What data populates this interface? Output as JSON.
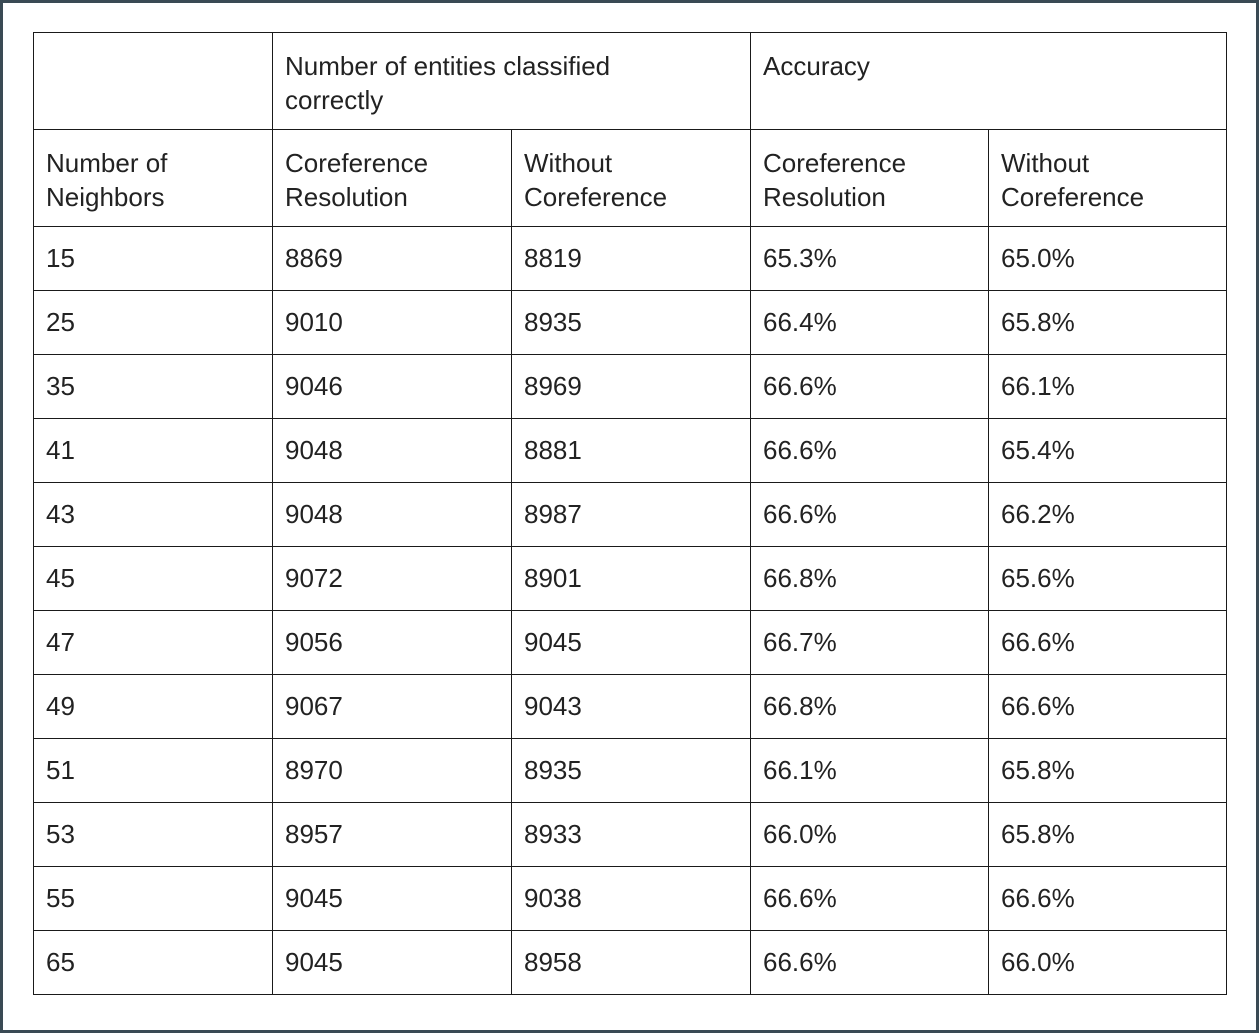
{
  "chart_data": {
    "type": "table",
    "header_groups": [
      {
        "label": "",
        "span": 1
      },
      {
        "label": "Number of entities classified correctly",
        "span": 2
      },
      {
        "label": "Accuracy",
        "span": 2
      }
    ],
    "columns": [
      "Number of\nNeighbors",
      "Coreference\nResolution",
      "Without\nCoreference",
      "Coreference\nResolution",
      "Without\nCoreference"
    ],
    "rows": [
      [
        "15",
        "8869",
        "8819",
        "65.3%",
        "65.0%"
      ],
      [
        "25",
        "9010",
        "8935",
        "66.4%",
        "65.8%"
      ],
      [
        "35",
        "9046",
        "8969",
        "66.6%",
        "66.1%"
      ],
      [
        "41",
        "9048",
        "8881",
        "66.6%",
        "65.4%"
      ],
      [
        "43",
        "9048",
        "8987",
        "66.6%",
        "66.2%"
      ],
      [
        "45",
        "9072",
        "8901",
        "66.8%",
        "65.6%"
      ],
      [
        "47",
        "9056",
        "9045",
        "66.7%",
        "66.6%"
      ],
      [
        "49",
        "9067",
        "9043",
        "66.8%",
        "66.6%"
      ],
      [
        "51",
        "8970",
        "8935",
        "66.1%",
        "65.8%"
      ],
      [
        "53",
        "8957",
        "8933",
        "66.0%",
        "65.8%"
      ],
      [
        "55",
        "9045",
        "9038",
        "66.6%",
        "66.6%"
      ],
      [
        "65",
        "9045",
        "8958",
        "66.6%",
        "66.0%"
      ]
    ]
  }
}
